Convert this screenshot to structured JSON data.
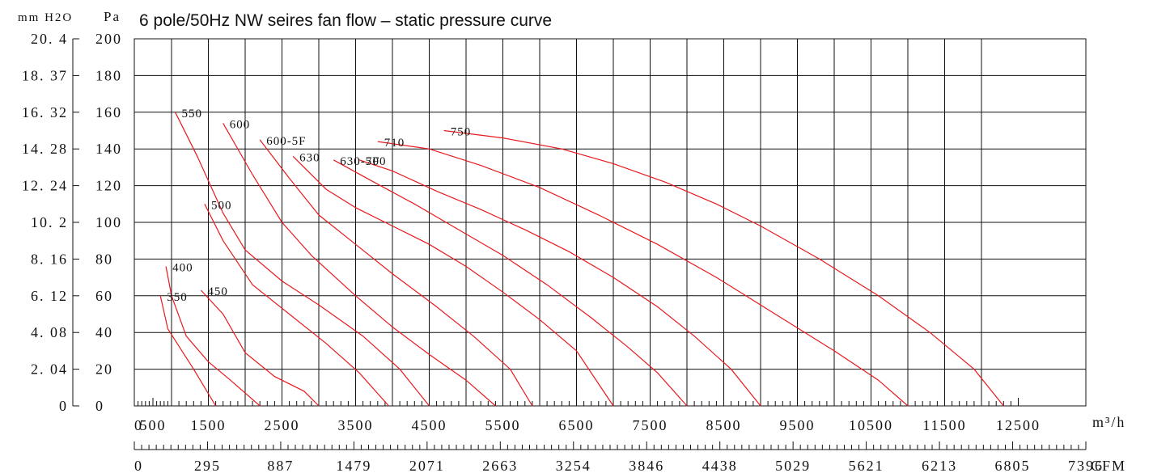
{
  "chart_data": {
    "type": "line",
    "title": "6 pole/50Hz NW seires fan flow – static pressure curve",
    "y_axis": {
      "label": "Pa",
      "range": [
        0,
        200
      ],
      "ticks": [
        "0",
        "20",
        "40",
        "60",
        "80",
        "100",
        "120",
        "140",
        "160",
        "180",
        "200"
      ]
    },
    "y2_axis": {
      "label": "mm H2O",
      "ticks": [
        "0",
        "2. 04",
        "4. 08",
        "6. 12",
        "8. 16",
        "10. 2",
        "12. 24",
        "14. 28",
        "16. 32",
        "18. 37",
        "20. 4"
      ]
    },
    "x_axis": {
      "label": "m³/h",
      "range": [
        0,
        12500
      ],
      "ticks": [
        "0",
        "500",
        "1500",
        "2500",
        "3500",
        "4500",
        "5500",
        "6500",
        "7500",
        "8500",
        "9500",
        "10500",
        "11500",
        "12500"
      ]
    },
    "x2_axis": {
      "label": "CFM",
      "ticks": [
        "0",
        "295",
        "887",
        "1479",
        "2071",
        "2663",
        "3254",
        "3846",
        "4438",
        "5029",
        "5621",
        "6213",
        "6805",
        "7396"
      ]
    },
    "series": [
      {
        "name": "350",
        "color": "#e8191e",
        "x": [
          700,
          900,
          1300,
          1600
        ],
        "y": [
          60,
          42,
          20,
          0
        ]
      },
      {
        "name": "400",
        "color": "#e8191e",
        "x": [
          850,
          1000,
          1200,
          1500,
          1800,
          2200
        ],
        "y": [
          76,
          60,
          38,
          24,
          14,
          0
        ]
      },
      {
        "name": "450",
        "color": "#e8191e",
        "x": [
          1400,
          1700,
          2000,
          2400,
          2800,
          3000
        ],
        "y": [
          63,
          50,
          29,
          16,
          8,
          0
        ]
      },
      {
        "name": "500",
        "color": "#e8191e",
        "x": [
          1450,
          1700,
          2100,
          2600,
          3100,
          3550,
          3950
        ],
        "y": [
          110,
          90,
          66,
          50,
          34,
          18,
          0
        ]
      },
      {
        "name": "550",
        "color": "#e8191e",
        "x": [
          1050,
          1350,
          1700,
          2000,
          2500,
          3000,
          3600,
          4100,
          4500
        ],
        "y": [
          160,
          136,
          105,
          85,
          68,
          55,
          38,
          20,
          0
        ]
      },
      {
        "name": "600",
        "color": "#e8191e",
        "x": [
          1700,
          2100,
          2500,
          2900,
          3500,
          4000,
          4500,
          5000,
          5400
        ],
        "y": [
          154,
          126,
          100,
          82,
          60,
          43,
          28,
          14,
          0
        ]
      },
      {
        "name": "600-5F",
        "color": "#e8191e",
        "x": [
          2200,
          2600,
          3000,
          3500,
          4000,
          4600,
          5100,
          5600,
          5900
        ],
        "y": [
          145,
          124,
          104,
          88,
          72,
          54,
          38,
          20,
          0
        ]
      },
      {
        "name": "630",
        "color": "#e8191e",
        "x": [
          2650,
          3100,
          3500,
          4000,
          4500,
          5000,
          5500,
          6000,
          6500,
          7000
        ],
        "y": [
          136,
          118,
          108,
          98,
          88,
          76,
          62,
          47,
          30,
          0
        ]
      },
      {
        "name": "630-5F",
        "color": "#e8191e",
        "x": [
          3200,
          3700,
          4300,
          4900,
          5500,
          6100,
          6700,
          7200,
          7600,
          8000
        ],
        "y": [
          134,
          123,
          110,
          96,
          82,
          66,
          48,
          32,
          18,
          0
        ]
      },
      {
        "name": "700",
        "color": "#e8191e",
        "x": [
          3550,
          4000,
          4600,
          5200,
          5800,
          6400,
          7000,
          7600,
          8100,
          8600,
          9000
        ],
        "y": [
          134,
          128,
          117,
          107,
          96,
          84,
          70,
          54,
          38,
          20,
          0
        ]
      },
      {
        "name": "710",
        "color": "#e8191e",
        "x": [
          3800,
          4500,
          5200,
          6000,
          6800,
          7600,
          8400,
          9200,
          10000,
          10600,
          11000
        ],
        "y": [
          144,
          140,
          131,
          119,
          104,
          88,
          70,
          50,
          30,
          14,
          0
        ]
      },
      {
        "name": "750",
        "color": "#e8191e",
        "x": [
          4700,
          5500,
          6300,
          7000,
          7700,
          8400,
          9000,
          9800,
          10600,
          11300,
          11900,
          12300
        ],
        "y": [
          150,
          146,
          140,
          132,
          122,
          110,
          98,
          80,
          60,
          40,
          20,
          0
        ]
      }
    ]
  }
}
